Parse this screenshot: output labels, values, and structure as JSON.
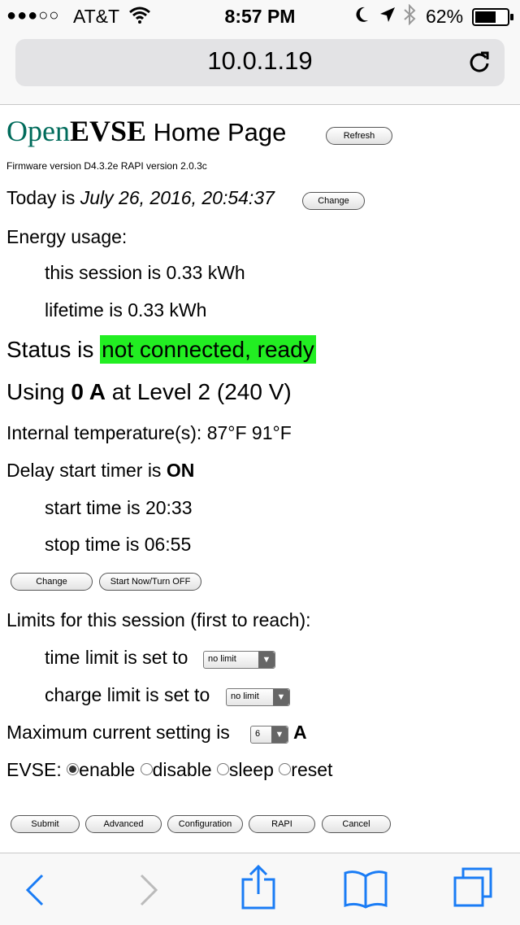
{
  "statusbar": {
    "carrier": "AT&T",
    "time": "8:57 PM",
    "battery": "62%"
  },
  "browser": {
    "url": "10.0.1.19"
  },
  "page": {
    "title_brand_open": "Open",
    "title_brand_evse": "EVSE",
    "title_rest": " Home Page",
    "refresh_label": "Refresh",
    "firmware": "Firmware version D4.3.2e  RAPI version 2.0.3c",
    "today_prefix": "Today is ",
    "today_value": "July 26, 2016, 20:54:37",
    "change_date_label": "Change",
    "energy_heading": "Energy usage:",
    "energy_session": "this session is 0.33 kWh",
    "energy_lifetime": "lifetime is 0.33 kWh",
    "status_prefix": "Status is ",
    "status_value": " not connected, ready ",
    "using_prefix": "Using ",
    "using_amps": "0 A",
    "using_suffix": " at Level 2 (240 V)",
    "temperature": "Internal temperature(s): 87°F  91°F",
    "delay_prefix": "Delay start timer is ",
    "delay_value": "ON",
    "start_time": "start time is 20:33",
    "stop_time": "stop time is 06:55",
    "change_timer_label": "Change",
    "start_now_label": "Start Now/Turn OFF",
    "limits_heading": "Limits for this session (first to reach):",
    "time_limit_label": "time limit is set to",
    "time_limit_value": "no limit",
    "charge_limit_label": "charge limit is set to",
    "charge_limit_value": "no limit",
    "max_current_label": "Maximum current setting is",
    "max_current_value": "6",
    "max_current_unit": "A",
    "evse_label": "EVSE:",
    "evse_options": [
      "enable",
      "disable",
      "sleep",
      "reset"
    ],
    "evse_selected": "enable",
    "buttons": {
      "submit": "Submit",
      "advanced": "Advanced",
      "configuration": "Configuration",
      "rapi": "RAPI",
      "cancel": "Cancel"
    }
  },
  "colors": {
    "brand": "#006b5b",
    "status_bg": "#22ee22",
    "ios_blue": "#1a7cf5"
  },
  "icons": [
    "wifi-icon",
    "moon-icon",
    "location-icon",
    "bluetooth-icon",
    "battery-icon",
    "reload-icon",
    "back-icon",
    "forward-icon",
    "share-icon",
    "bookmarks-icon",
    "tabs-icon"
  ]
}
